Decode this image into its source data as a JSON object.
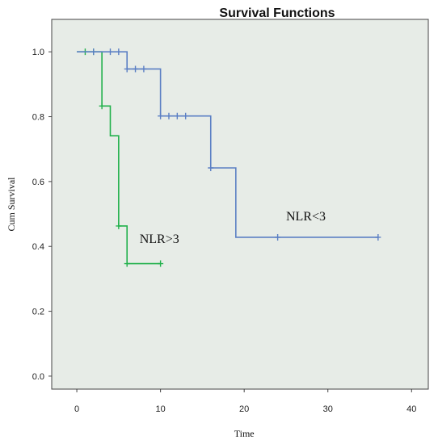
{
  "chart_data": {
    "type": "line",
    "title": "Survival Functions",
    "xlabel": "Time",
    "ylabel": "Cum Survival",
    "xlim": [
      -3,
      42
    ],
    "ylim": [
      -0.04,
      1.1
    ],
    "x_ticks": [
      0,
      10,
      20,
      30,
      40
    ],
    "y_ticks": [
      0.0,
      0.2,
      0.4,
      0.6,
      0.8,
      1.0
    ],
    "y_tick_labels": [
      "0.0",
      "0.2",
      "0.4",
      "0.6",
      "0.8",
      "1.0"
    ],
    "grid": false,
    "background": "#e7ece7",
    "series": [
      {
        "name": "NLR>3",
        "color": "#22b14c",
        "steps": [
          {
            "x": 0,
            "y": 1.0
          },
          {
            "x": 3,
            "y": 0.833
          },
          {
            "x": 4,
            "y": 0.741
          },
          {
            "x": 5,
            "y": 0.463
          },
          {
            "x": 6,
            "y": 0.347
          },
          {
            "x": 10,
            "y": 0.347
          }
        ],
        "censored": [
          {
            "x": 1,
            "y": 1.0
          },
          {
            "x": 2,
            "y": 1.0
          },
          {
            "x": 3,
            "y": 0.833
          },
          {
            "x": 5,
            "y": 0.463
          },
          {
            "x": 6,
            "y": 0.347
          },
          {
            "x": 10,
            "y": 0.347
          }
        ]
      },
      {
        "name": "NLR<3",
        "color": "#5b7fc4",
        "steps": [
          {
            "x": 0,
            "y": 1.0
          },
          {
            "x": 6,
            "y": 0.947
          },
          {
            "x": 10,
            "y": 0.802
          },
          {
            "x": 16,
            "y": 0.642
          },
          {
            "x": 19,
            "y": 0.428
          },
          {
            "x": 36,
            "y": 0.428
          }
        ],
        "censored": [
          {
            "x": 2,
            "y": 1.0
          },
          {
            "x": 4,
            "y": 1.0
          },
          {
            "x": 5,
            "y": 1.0
          },
          {
            "x": 6,
            "y": 0.947
          },
          {
            "x": 7,
            "y": 0.947
          },
          {
            "x": 8,
            "y": 0.947
          },
          {
            "x": 10,
            "y": 0.802
          },
          {
            "x": 11,
            "y": 0.802
          },
          {
            "x": 12,
            "y": 0.802
          },
          {
            "x": 13,
            "y": 0.802
          },
          {
            "x": 16,
            "y": 0.642
          },
          {
            "x": 24,
            "y": 0.428
          },
          {
            "x": 36,
            "y": 0.428
          }
        ]
      }
    ],
    "annotations": [
      {
        "text": "NLR>3",
        "x": 7.5,
        "y": 0.41
      },
      {
        "text": "NLR<3",
        "x": 25,
        "y": 0.48
      }
    ]
  }
}
